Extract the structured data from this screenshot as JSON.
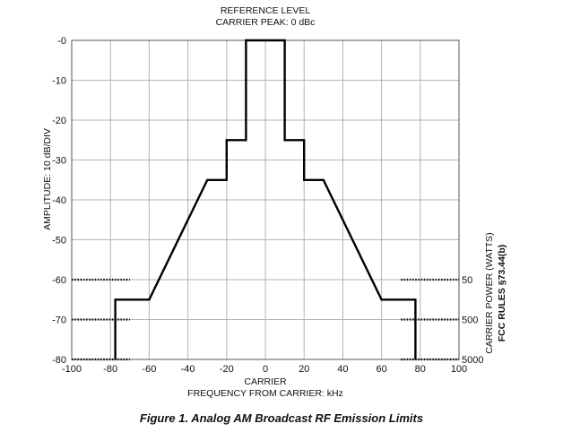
{
  "chart_data": {
    "type": "line",
    "title_lines": [
      "REFERENCE LEVEL",
      "CARRIER PEAK: 0 dBc"
    ],
    "xlabel_lines": [
      "CARRIER",
      "FREQUENCY FROM CARRIER: kHz"
    ],
    "ylabel": "AMPLITUDE: 10 dB/DIV",
    "right_label_lines": [
      "CARRIER POWER (WATTS)",
      "FCC RULES §73.44(b)"
    ],
    "xlim": [
      -100,
      100
    ],
    "ylim": [
      -80,
      0
    ],
    "grid": true,
    "xticks": [
      -100,
      -80,
      -60,
      -40,
      -20,
      0,
      20,
      40,
      60,
      80,
      100
    ],
    "xtick_labels": [
      "-100",
      "-80",
      "-60",
      "-40",
      "-20",
      "0",
      "20",
      "40",
      "60",
      "80",
      "100"
    ],
    "yticks": [
      0,
      -10,
      -20,
      -30,
      -40,
      -50,
      -60,
      -70,
      -80
    ],
    "ytick_labels": [
      "-0",
      "-10",
      "-20",
      "-30",
      "-40",
      "-50",
      "-60",
      "-70",
      "-80"
    ],
    "series": [
      {
        "x": [
          -77.5,
          -77.5,
          -60,
          -30,
          -20,
          -20,
          -10,
          -10,
          10,
          10,
          20,
          20,
          30,
          60,
          77.5,
          77.5
        ],
        "y": [
          -80,
          -65,
          -65,
          -35,
          -35,
          -25,
          -25,
          0,
          0,
          -25,
          -25,
          -35,
          -35,
          -65,
          -65,
          -80
        ]
      }
    ],
    "power_levels": [
      {
        "watts": "50",
        "y": -60
      },
      {
        "watts": "500",
        "y": -70
      },
      {
        "watts": "5000",
        "y": -80
      }
    ]
  },
  "caption": "Figure 1. Analog AM Broadcast RF Emission Limits"
}
